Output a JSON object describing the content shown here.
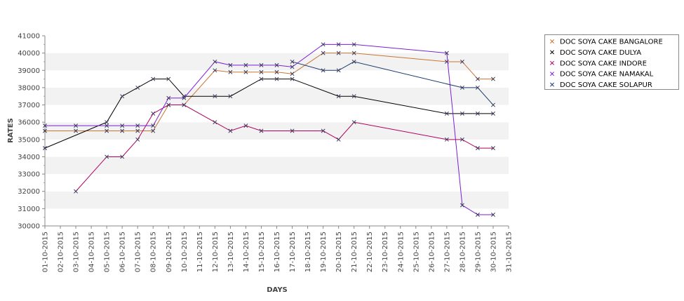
{
  "chart_data": {
    "type": "line",
    "title": "",
    "xlabel": "DAYS",
    "ylabel": "RATES",
    "ylim": [
      30000,
      41000
    ],
    "y_ticks": [
      30000,
      31000,
      32000,
      33000,
      34000,
      35000,
      36000,
      37000,
      38000,
      39000,
      40000,
      41000
    ],
    "grid": "alternating-horizontal-bands",
    "legend_position": "right",
    "categories": [
      "01-10-2015",
      "02-10-2015",
      "03-10-2015",
      "04-10-2015",
      "05-10-2015",
      "06-10-2015",
      "07-10-2015",
      "08-10-2015",
      "09-10-2015",
      "10-10-2015",
      "11-10-2015",
      "12-10-2015",
      "13-10-2015",
      "14-10-2015",
      "15-10-2015",
      "16-10-2015",
      "17-10-2015",
      "18-10-2015",
      "19-10-2015",
      "20-10-2015",
      "21-10-2015",
      "22-10-2015",
      "23-10-2015",
      "24-10-2015",
      "25-10-2015",
      "26-10-2015",
      "27-10-2015",
      "28-10-2015",
      "29-10-2015",
      "30-10-2015",
      "31-10-2015"
    ],
    "series": [
      {
        "name": "DOC SOYA CAKE BANGALORE",
        "color": "#c87533",
        "points": [
          [
            "01-10-2015",
            35500
          ],
          [
            "03-10-2015",
            35500
          ],
          [
            "05-10-2015",
            35500
          ],
          [
            "06-10-2015",
            35500
          ],
          [
            "07-10-2015",
            35500
          ],
          [
            "08-10-2015",
            35500
          ],
          [
            "09-10-2015",
            37000
          ],
          [
            "10-10-2015",
            37000
          ],
          [
            "12-10-2015",
            39000
          ],
          [
            "13-10-2015",
            38900
          ],
          [
            "14-10-2015",
            38900
          ],
          [
            "15-10-2015",
            38900
          ],
          [
            "16-10-2015",
            38900
          ],
          [
            "17-10-2015",
            38800
          ],
          [
            "19-10-2015",
            40000
          ],
          [
            "20-10-2015",
            40000
          ],
          [
            "21-10-2015",
            40000
          ],
          [
            "27-10-2015",
            39500
          ],
          [
            "28-10-2015",
            39500
          ],
          [
            "29-10-2015",
            38500
          ],
          [
            "30-10-2015",
            38500
          ]
        ]
      },
      {
        "name": "DOC SOYA CAKE DULYA",
        "color": "#000000",
        "points": [
          [
            "01-10-2015",
            34500
          ],
          [
            "05-10-2015",
            36000
          ],
          [
            "06-10-2015",
            37500
          ],
          [
            "07-10-2015",
            38000
          ],
          [
            "08-10-2015",
            38500
          ],
          [
            "09-10-2015",
            38500
          ],
          [
            "10-10-2015",
            37500
          ],
          [
            "12-10-2015",
            37500
          ],
          [
            "13-10-2015",
            37500
          ],
          [
            "15-10-2015",
            38500
          ],
          [
            "16-10-2015",
            38500
          ],
          [
            "17-10-2015",
            38500
          ],
          [
            "20-10-2015",
            37500
          ],
          [
            "21-10-2015",
            37500
          ],
          [
            "27-10-2015",
            36500
          ],
          [
            "28-10-2015",
            36500
          ],
          [
            "29-10-2015",
            36500
          ],
          [
            "30-10-2015",
            36500
          ]
        ]
      },
      {
        "name": "DOC SOYA CAKE INDORE",
        "color": "#b0005f",
        "points": [
          [
            "03-10-2015",
            32000
          ],
          [
            "05-10-2015",
            34000
          ],
          [
            "06-10-2015",
            34000
          ],
          [
            "07-10-2015",
            35000
          ],
          [
            "08-10-2015",
            36500
          ],
          [
            "09-10-2015",
            37000
          ],
          [
            "10-10-2015",
            37000
          ],
          [
            "12-10-2015",
            36000
          ],
          [
            "13-10-2015",
            35500
          ],
          [
            "14-10-2015",
            35800
          ],
          [
            "15-10-2015",
            35500
          ],
          [
            "17-10-2015",
            35500
          ],
          [
            "19-10-2015",
            35500
          ],
          [
            "20-10-2015",
            35000
          ],
          [
            "21-10-2015",
            36000
          ],
          [
            "27-10-2015",
            35000
          ],
          [
            "28-10-2015",
            35000
          ],
          [
            "29-10-2015",
            34500
          ],
          [
            "30-10-2015",
            34500
          ]
        ]
      },
      {
        "name": "DOC SOYA CAKE NAMAKAL",
        "color": "#7a1fd6",
        "points": [
          [
            "01-10-2015",
            35800
          ],
          [
            "03-10-2015",
            35800
          ],
          [
            "05-10-2015",
            35800
          ],
          [
            "06-10-2015",
            35800
          ],
          [
            "07-10-2015",
            35800
          ],
          [
            "08-10-2015",
            35800
          ],
          [
            "09-10-2015",
            37400
          ],
          [
            "10-10-2015",
            37400
          ],
          [
            "12-10-2015",
            39500
          ],
          [
            "13-10-2015",
            39300
          ],
          [
            "14-10-2015",
            39300
          ],
          [
            "15-10-2015",
            39300
          ],
          [
            "16-10-2015",
            39300
          ],
          [
            "17-10-2015",
            39200
          ],
          [
            "19-10-2015",
            40500
          ],
          [
            "20-10-2015",
            40500
          ],
          [
            "21-10-2015",
            40500
          ],
          [
            "27-10-2015",
            40000
          ],
          [
            "28-10-2015",
            31200
          ],
          [
            "29-10-2015",
            30650
          ],
          [
            "30-10-2015",
            30650
          ]
        ]
      },
      {
        "name": "DOC SOYA CAKE SOLAPUR",
        "color": "#1a3a6e",
        "points": [
          [
            "17-10-2015",
            39500
          ],
          [
            "19-10-2015",
            39000
          ],
          [
            "20-10-2015",
            39000
          ],
          [
            "21-10-2015",
            39500
          ],
          [
            "28-10-2015",
            38000
          ],
          [
            "29-10-2015",
            38000
          ],
          [
            "30-10-2015",
            37000
          ]
        ]
      }
    ]
  }
}
